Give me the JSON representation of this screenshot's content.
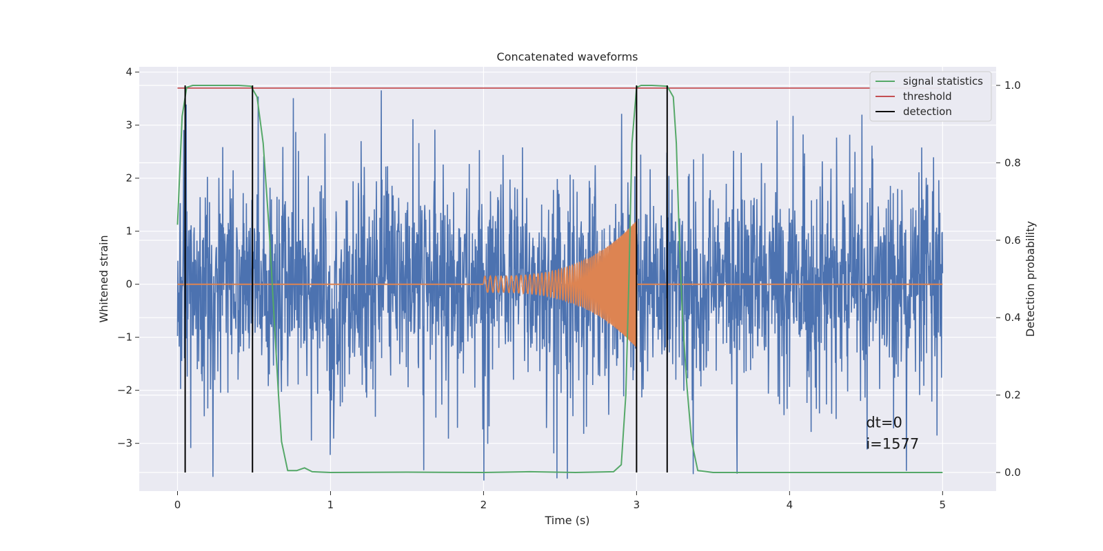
{
  "chart_data": {
    "type": "line",
    "title": "Concatenated waveforms",
    "xlabel": "Time (s)",
    "ylabel": "Whitened strain",
    "y2label": "Detection probability",
    "xlim": [
      -0.25,
      5.35
    ],
    "ylim": [
      -3.9,
      4.1
    ],
    "y2lim": [
      -0.048,
      1.048
    ],
    "x_ticks": [
      0,
      1,
      2,
      3,
      4,
      5
    ],
    "y_ticks": [
      -3,
      -2,
      -1,
      0,
      1,
      2,
      3,
      4
    ],
    "y2_ticks": [
      0.0,
      0.2,
      0.4,
      0.6,
      0.8,
      1.0
    ],
    "y2_tick_labels": [
      "0.0",
      "0.2",
      "0.4",
      "0.6",
      "0.8",
      "1.0"
    ],
    "grid": true,
    "legend_position": "top-right",
    "colors": {
      "noise": "#4c72b0",
      "injected": "#dd8452",
      "signal_statistics": "#55a868",
      "threshold": "#c44e52",
      "detection": "#000000",
      "background": "#eaeaf2",
      "grid": "#ffffff"
    },
    "series": [
      {
        "name": "signal statistics",
        "axis": "right",
        "x": [
          0.0,
          0.03,
          0.06,
          0.1,
          0.2,
          0.3,
          0.4,
          0.48,
          0.52,
          0.56,
          0.6,
          0.62,
          0.64,
          0.66,
          0.68,
          0.72,
          0.78,
          0.83,
          0.88,
          1.0,
          1.5,
          2.0,
          2.3,
          2.6,
          2.85,
          2.9,
          2.93,
          2.95,
          2.97,
          3.0,
          3.03,
          3.1,
          3.2,
          3.24,
          3.26,
          3.28,
          3.3,
          3.33,
          3.36,
          3.4,
          3.5,
          4.0,
          4.5,
          5.0
        ],
        "y": [
          0.64,
          0.92,
          0.995,
          1.0,
          1.0,
          1.0,
          1.0,
          0.998,
          0.97,
          0.85,
          0.62,
          0.48,
          0.34,
          0.2,
          0.08,
          0.005,
          0.005,
          0.012,
          0.002,
          0.0,
          0.001,
          0.0,
          0.002,
          0.0,
          0.002,
          0.02,
          0.2,
          0.5,
          0.85,
          0.995,
          1.0,
          1.0,
          0.998,
          0.97,
          0.85,
          0.6,
          0.4,
          0.22,
          0.08,
          0.005,
          0.0,
          0.0,
          0.0,
          0.0
        ]
      },
      {
        "name": "threshold",
        "axis": "right",
        "x": [
          0.0,
          5.0
        ],
        "y": [
          0.993,
          0.993
        ]
      },
      {
        "name": "detection",
        "axis": "right",
        "type": "vlines",
        "x": [
          0.05,
          0.49,
          3.0,
          3.2
        ],
        "ymin": 0.0,
        "ymax": 1.0
      },
      {
        "name": "",
        "axis": "left",
        "role": "noise",
        "x_start": 0.0,
        "x_end": 5.0,
        "amplitude_typical": 2.0,
        "amplitude_max": 3.7
      },
      {
        "name": "",
        "axis": "left",
        "role": "chirp",
        "x_start": 2.0,
        "x_end": 3.0,
        "amplitude_start": 0.15,
        "amplitude_end": 1.2
      }
    ],
    "legend": [
      "signal statistics",
      "threshold",
      "detection"
    ],
    "annotations": [
      {
        "text": "dt=0",
        "x": 4.5,
        "y": -2.7
      },
      {
        "text": "i=1577",
        "x": 4.5,
        "y": -3.1
      }
    ]
  }
}
